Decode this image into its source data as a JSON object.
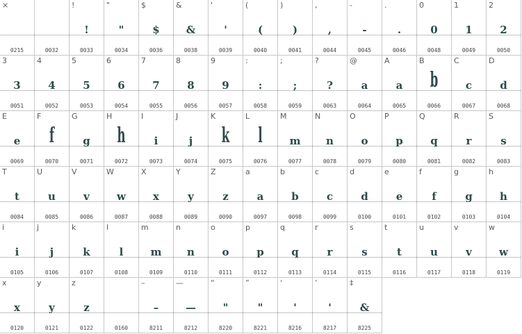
{
  "glyph_map": {
    "cells": [
      {
        "key": "×",
        "glyph": "",
        "code": "0215"
      },
      {
        "key": "",
        "glyph": "",
        "code": "0032"
      },
      {
        "key": "!",
        "glyph": "!",
        "code": "0033"
      },
      {
        "key": "\"",
        "glyph": "\"",
        "code": "0034"
      },
      {
        "key": "$",
        "glyph": "$",
        "code": "0036"
      },
      {
        "key": "&",
        "glyph": "&",
        "code": "0038"
      },
      {
        "key": "'",
        "glyph": "'",
        "code": "0039"
      },
      {
        "key": "(",
        "glyph": "(",
        "code": "0040"
      },
      {
        "key": ")",
        "glyph": ")",
        "code": "0041"
      },
      {
        "key": ",",
        "glyph": ",",
        "code": "0044"
      },
      {
        "key": "-",
        "glyph": "-",
        "code": "0045"
      },
      {
        "key": ".",
        "glyph": ".",
        "code": "0046"
      },
      {
        "key": "0",
        "glyph": "0",
        "code": "0048"
      },
      {
        "key": "1",
        "glyph": "1",
        "code": "0049"
      },
      {
        "key": "2",
        "glyph": "2",
        "code": "0050"
      },
      {
        "key": "3",
        "glyph": "3",
        "code": "0051"
      },
      {
        "key": "4",
        "glyph": "4",
        "code": "0052"
      },
      {
        "key": "5",
        "glyph": "5",
        "code": "0053"
      },
      {
        "key": "6",
        "glyph": "6",
        "code": "0054"
      },
      {
        "key": "7",
        "glyph": "7",
        "code": "0055"
      },
      {
        "key": "8",
        "glyph": "8",
        "code": "0056"
      },
      {
        "key": "9",
        "glyph": "9",
        "code": "0057"
      },
      {
        "key": ":",
        "glyph": ":",
        "code": "0058"
      },
      {
        "key": ";",
        "glyph": ";",
        "code": "0059"
      },
      {
        "key": "?",
        "glyph": "?",
        "code": "0063"
      },
      {
        "key": "@",
        "glyph": "a",
        "code": "0064"
      },
      {
        "key": "A",
        "glyph": "a",
        "code": "0065"
      },
      {
        "key": "B",
        "glyph": "b",
        "code": "0066",
        "tall": true
      },
      {
        "key": "C",
        "glyph": "c",
        "code": "0067"
      },
      {
        "key": "D",
        "glyph": "d",
        "code": "0068"
      },
      {
        "key": "E",
        "glyph": "e",
        "code": "0069"
      },
      {
        "key": "F",
        "glyph": "f",
        "code": "0070",
        "tall": true
      },
      {
        "key": "G",
        "glyph": "g",
        "code": "0071"
      },
      {
        "key": "H",
        "glyph": "h",
        "code": "0072",
        "tall": true
      },
      {
        "key": "I",
        "glyph": "i",
        "code": "0073"
      },
      {
        "key": "J",
        "glyph": "j",
        "code": "0074"
      },
      {
        "key": "K",
        "glyph": "k",
        "code": "0075",
        "tall": true
      },
      {
        "key": "L",
        "glyph": "l",
        "code": "0076",
        "tall": true
      },
      {
        "key": "M",
        "glyph": "m",
        "code": "0077"
      },
      {
        "key": "N",
        "glyph": "n",
        "code": "0078"
      },
      {
        "key": "O",
        "glyph": "o",
        "code": "0079"
      },
      {
        "key": "P",
        "glyph": "p",
        "code": "0080"
      },
      {
        "key": "Q",
        "glyph": "q",
        "code": "0081"
      },
      {
        "key": "R",
        "glyph": "r",
        "code": "0082"
      },
      {
        "key": "S",
        "glyph": "s",
        "code": "0083"
      },
      {
        "key": "T",
        "glyph": "t",
        "code": "0084"
      },
      {
        "key": "U",
        "glyph": "u",
        "code": "0085"
      },
      {
        "key": "V",
        "glyph": "v",
        "code": "0086"
      },
      {
        "key": "W",
        "glyph": "w",
        "code": "0087"
      },
      {
        "key": "X",
        "glyph": "x",
        "code": "0088"
      },
      {
        "key": "Y",
        "glyph": "y",
        "code": "0089"
      },
      {
        "key": "Z",
        "glyph": "z",
        "code": "0090"
      },
      {
        "key": "a",
        "glyph": "a",
        "code": "0097"
      },
      {
        "key": "b",
        "glyph": "b",
        "code": "0098"
      },
      {
        "key": "c",
        "glyph": "c",
        "code": "0099"
      },
      {
        "key": "d",
        "glyph": "d",
        "code": "0100"
      },
      {
        "key": "e",
        "glyph": "e",
        "code": "0101"
      },
      {
        "key": "f",
        "glyph": "f",
        "code": "0102"
      },
      {
        "key": "g",
        "glyph": "g",
        "code": "0103"
      },
      {
        "key": "h",
        "glyph": "h",
        "code": "0104"
      },
      {
        "key": "i",
        "glyph": "i",
        "code": "0105"
      },
      {
        "key": "j",
        "glyph": "j",
        "code": "0106"
      },
      {
        "key": "k",
        "glyph": "k",
        "code": "0107"
      },
      {
        "key": "l",
        "glyph": "l",
        "code": "0108"
      },
      {
        "key": "m",
        "glyph": "m",
        "code": "0109"
      },
      {
        "key": "n",
        "glyph": "n",
        "code": "0110"
      },
      {
        "key": "o",
        "glyph": "o",
        "code": "0111"
      },
      {
        "key": "p",
        "glyph": "p",
        "code": "0112"
      },
      {
        "key": "q",
        "glyph": "q",
        "code": "0113"
      },
      {
        "key": "r",
        "glyph": "r",
        "code": "0114"
      },
      {
        "key": "s",
        "glyph": "s",
        "code": "0115"
      },
      {
        "key": "t",
        "glyph": "t",
        "code": "0116"
      },
      {
        "key": "u",
        "glyph": "u",
        "code": "0117"
      },
      {
        "key": "v",
        "glyph": "v",
        "code": "0118"
      },
      {
        "key": "w",
        "glyph": "w",
        "code": "0119"
      },
      {
        "key": "x",
        "glyph": "x",
        "code": "0120"
      },
      {
        "key": "y",
        "glyph": "y",
        "code": "0121"
      },
      {
        "key": "z",
        "glyph": "z",
        "code": "0122"
      },
      {
        "key": "",
        "glyph": "",
        "code": "0160"
      },
      {
        "key": "–",
        "glyph": "–",
        "code": "8211"
      },
      {
        "key": "—",
        "glyph": "—",
        "code": "8212"
      },
      {
        "key": "“",
        "glyph": "\"",
        "code": "8220"
      },
      {
        "key": "”",
        "glyph": "\"",
        "code": "8221"
      },
      {
        "key": "‘",
        "glyph": "'",
        "code": "8216"
      },
      {
        "key": "’",
        "glyph": "'",
        "code": "8217"
      },
      {
        "key": "‡",
        "glyph": "&",
        "code": "8225"
      }
    ]
  }
}
